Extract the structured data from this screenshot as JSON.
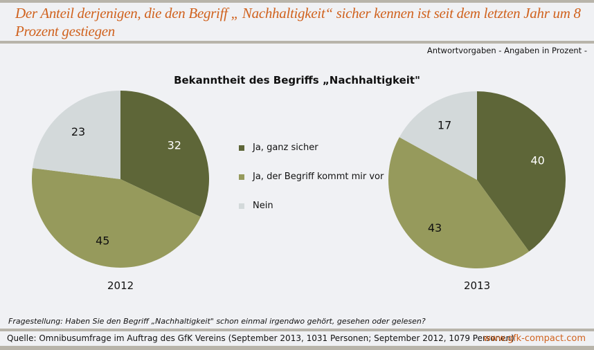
{
  "header": {
    "title": "Der Anteil derjenigen, die den Begriff „ Nachhaltigkeit“ sicher kennen ist seit dem letzten Jahr um 8 Prozent gestiegen",
    "note": "Antwortvorgaben - Angaben in Prozent -"
  },
  "chart_data": {
    "type": "pie",
    "title": "Bekanntheit des Begriffs „Nachhaltigkeit\"",
    "categories": [
      "Ja, ganz sicher",
      "Ja, der Begriff kommt mir vor",
      "Nein"
    ],
    "colors": [
      "#5e6638",
      "#969a5c",
      "#d3d9da"
    ],
    "legend": "center",
    "series": [
      {
        "name": "2012",
        "values": [
          32,
          45,
          23
        ]
      },
      {
        "name": "2013",
        "values": [
          40,
          43,
          17
        ]
      }
    ]
  },
  "footer": {
    "question": "Fragestellung: Haben Sie den Begriff „Nachhaltigkeit\" schon einmal irgendwo gehört, gesehen oder gelesen?",
    "source": "Quelle: Omnibusumfrage im Auftrag des GfK Vereins (September 2013, 1031 Personen; September 2012, 1079 Personen)",
    "url": "www.gfk-compact.com"
  }
}
